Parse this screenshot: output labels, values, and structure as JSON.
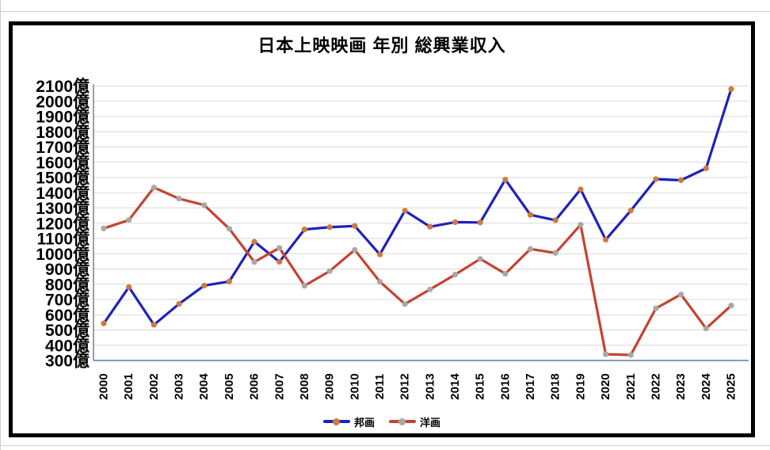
{
  "page": {
    "background": "#ffffff",
    "divider_color": "#cfcfcf",
    "frame_color": "#000000"
  },
  "chart_data": {
    "type": "line",
    "title": "日本上映映画 年別 総興業収入",
    "categories": [
      "2000",
      "2001",
      "2002",
      "2003",
      "2004",
      "2005",
      "2006",
      "2007",
      "2008",
      "2009",
      "2010",
      "2011",
      "2012",
      "2013",
      "2014",
      "2015",
      "2016",
      "2017",
      "2018",
      "2019",
      "2020",
      "2021",
      "2022",
      "2023",
      "2024",
      "2025"
    ],
    "series": [
      {
        "name": "邦画",
        "line_color": "#2020be",
        "marker_color": "#cd7b3c",
        "values": [
          543,
          781,
          534,
          671,
          791,
          818,
          1079,
          947,
          1159,
          1174,
          1182,
          995,
          1282,
          1177,
          1207,
          1205,
          1486,
          1255,
          1220,
          1422,
          1092,
          1283,
          1489,
          1482,
          1560,
          2080
        ]
      },
      {
        "name": "洋画",
        "line_color": "#c5432f",
        "marker_color": "#a8a8a8",
        "values": [
          1166,
          1221,
          1434,
          1361,
          1319,
          1164,
          946,
          1038,
          790,
          886,
          1025,
          817,
          670,
          766,
          863,
          966,
          869,
          1031,
          1005,
          1190,
          341,
          336,
          642,
          733,
          510,
          660
        ]
      }
    ],
    "y_axis": {
      "min": 300,
      "max": 2100,
      "step": 100,
      "tick_suffix": "億"
    },
    "x_axis": {
      "label_rotation_deg": 90
    },
    "grid": "horizontal",
    "gridline_color": "#d9d9d9",
    "axis_color": "#5b7b9e",
    "tick_label_color": "#000000",
    "legend_position": "bottom"
  }
}
